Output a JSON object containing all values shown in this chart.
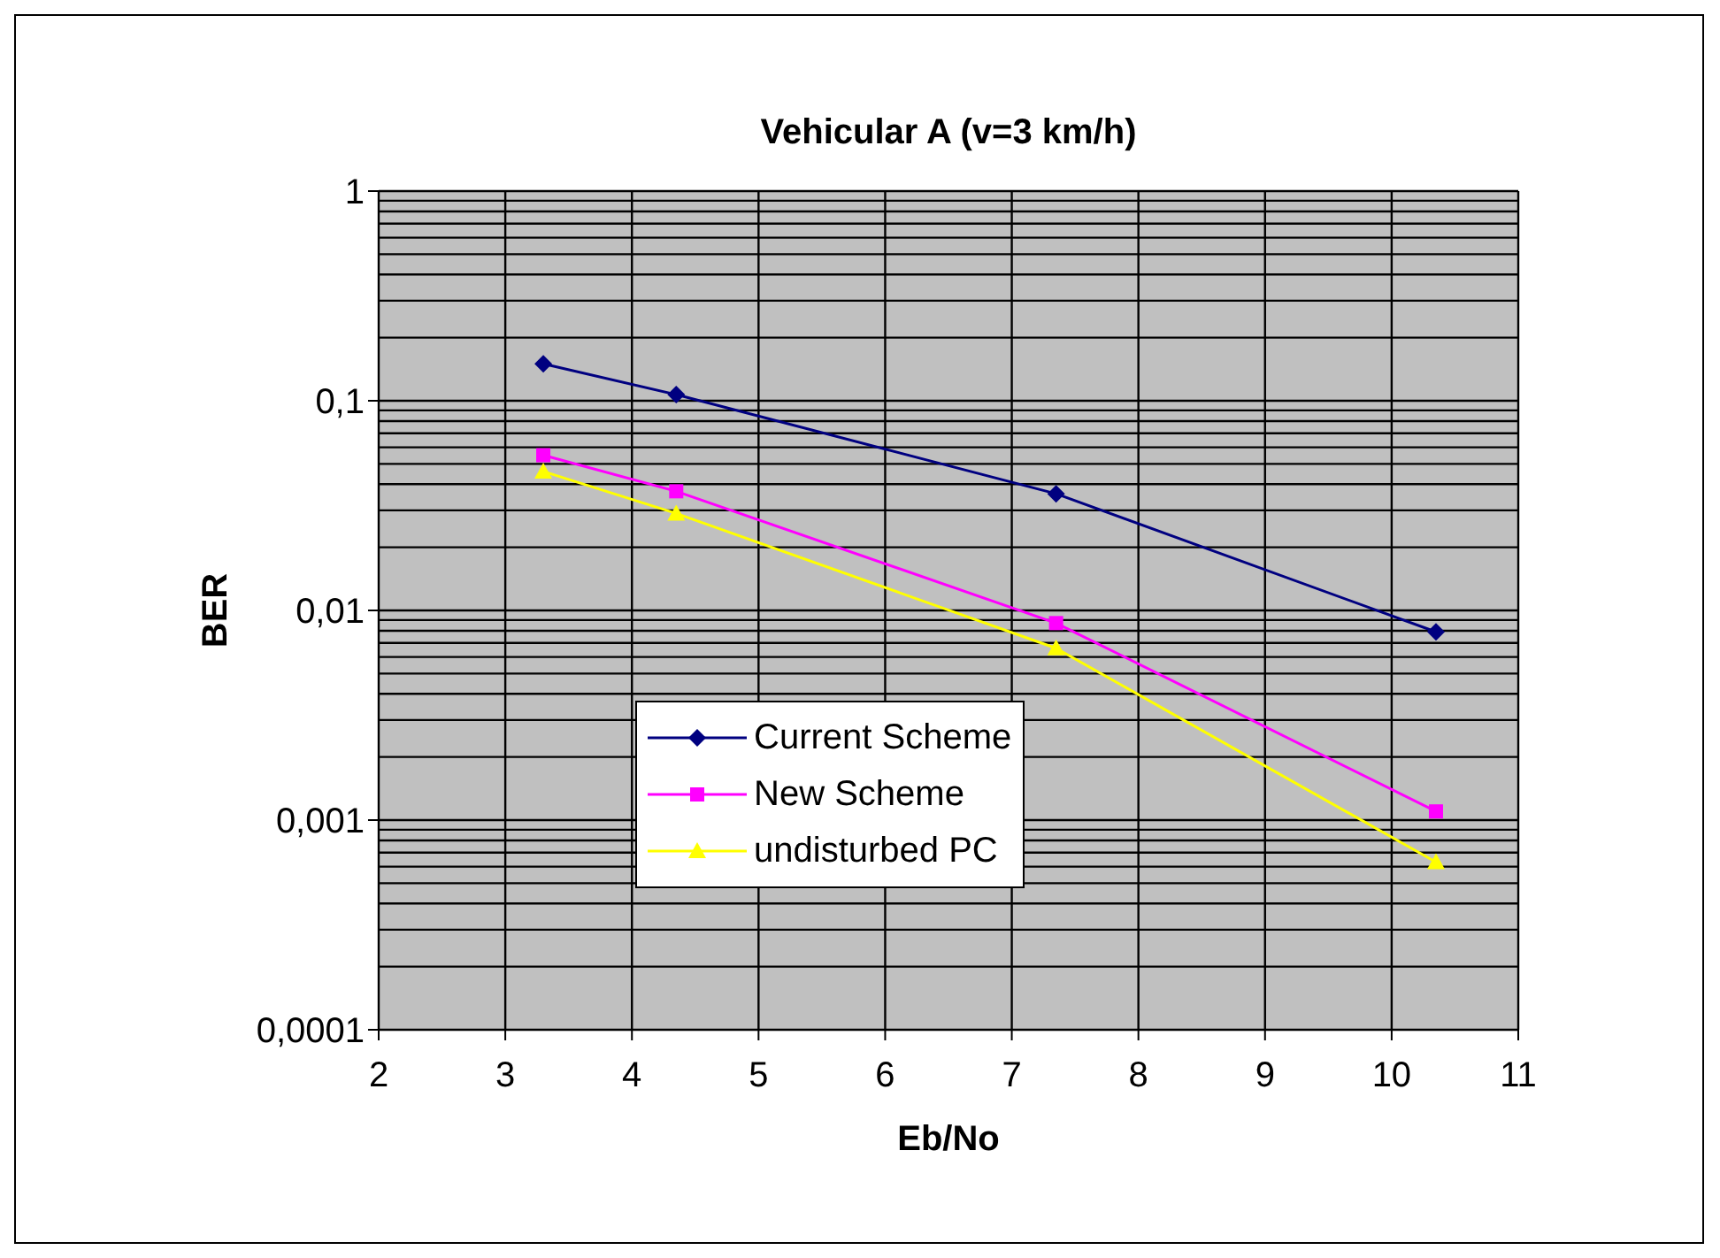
{
  "chart_data": {
    "type": "line",
    "title": "Vehicular A (v=3 km/h)",
    "xlabel": "Eb/No",
    "ylabel": "BER",
    "log": "y",
    "grid": true,
    "legend": "bottom left",
    "line_style": "solid",
    "xlim": [
      2,
      11
    ],
    "xticks": [
      2,
      3,
      4,
      5,
      6,
      7,
      8,
      9,
      10,
      11
    ],
    "ylim": [
      0.0001,
      1
    ],
    "yticks": [
      {
        "value": 0.0001,
        "label": "0,0001"
      },
      {
        "value": 0.001,
        "label": "0,001"
      },
      {
        "value": 0.01,
        "label": "0,01"
      },
      {
        "value": 0.1,
        "label": "0,1"
      },
      {
        "value": 1,
        "label": "1"
      }
    ],
    "series": [
      {
        "name": "Current Scheme",
        "color": "#000080",
        "marker": "diamond",
        "x": [
          3.3,
          4.35,
          7.35,
          10.35
        ],
        "values": [
          0.15,
          0.107,
          0.036,
          0.0079
        ]
      },
      {
        "name": "New Scheme",
        "color": "#ff00ff",
        "marker": "square",
        "x": [
          3.3,
          4.35,
          7.35,
          10.35
        ],
        "values": [
          0.055,
          0.037,
          0.0087,
          0.0011
        ]
      },
      {
        "name": "undisturbed PC",
        "color": "#ffff00",
        "marker": "triangle",
        "x": [
          3.3,
          4.35,
          7.35,
          10.35
        ],
        "values": [
          0.046,
          0.029,
          0.0066,
          0.00063
        ]
      }
    ]
  }
}
